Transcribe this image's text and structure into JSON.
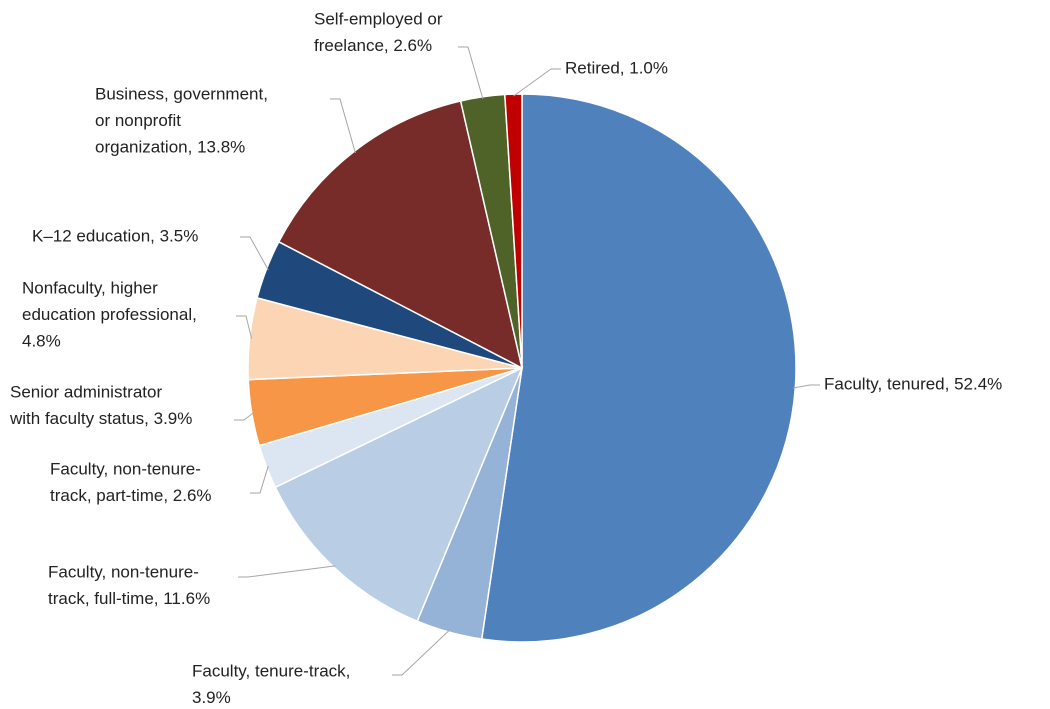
{
  "chart_data": {
    "type": "pie",
    "labels": [
      [
        "Faculty, tenured, 52.4%"
      ],
      [
        "Faculty, tenure-track,",
        "3.9%"
      ],
      [
        "Faculty, non-tenure-",
        "track, full-time, 11.6%"
      ],
      [
        "Faculty, non-tenure-",
        "track, part-time, 2.6%"
      ],
      [
        "Senior administrator",
        "with faculty status, 3.9%"
      ],
      [
        "Nonfaculty, higher",
        "education professional,",
        "4.8%"
      ],
      [
        "K–12 education, 3.5%"
      ],
      [
        "Business, government,",
        "or nonprofit",
        "organization, 13.8%"
      ],
      [
        "Self-employed or",
        "freelance, 2.6%"
      ],
      [
        "Retired, 1.0%"
      ]
    ],
    "values": [
      52.4,
      3.9,
      11.6,
      2.6,
      3.9,
      4.8,
      3.5,
      13.8,
      2.6,
      1.0
    ],
    "colors": [
      "#4f81bd",
      "#95b3d7",
      "#b9cde5",
      "#dce6f2",
      "#f79646",
      "#fcd5b5",
      "#1f497d",
      "#772c2a",
      "#4f6228",
      "#c00000"
    ]
  }
}
